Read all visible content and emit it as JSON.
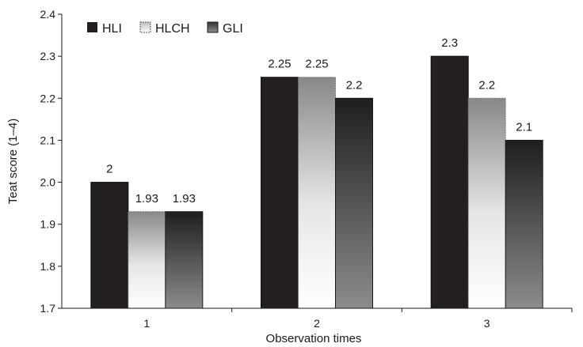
{
  "chart_data": {
    "type": "bar",
    "xlabel": "Observation times",
    "ylabel": "Teat score (1–4)",
    "ylim": [
      1.7,
      2.4
    ],
    "yticks": [
      "1.7",
      "1.8",
      "1.9",
      "2.0",
      "2.1",
      "2.2",
      "2.3",
      "2.4"
    ],
    "categories": [
      "1",
      "2",
      "3"
    ],
    "series": [
      {
        "name": "HLI",
        "values": [
          2.0,
          2.25,
          2.3
        ],
        "labels": [
          "2",
          "2.25",
          "2.3"
        ]
      },
      {
        "name": "HLCH",
        "values": [
          1.93,
          2.25,
          2.2
        ],
        "labels": [
          "1.93",
          "2.25",
          "2.2"
        ]
      },
      {
        "name": "GLI",
        "values": [
          1.93,
          2.2,
          2.1
        ],
        "labels": [
          "1.93",
          "2.2",
          "2.1"
        ]
      }
    ],
    "legend_position": "top-left",
    "grid": false,
    "colors": {
      "HLI": "#231f20",
      "HLCH": "#f2f2f2",
      "GLI": "#4a4a4a"
    }
  }
}
